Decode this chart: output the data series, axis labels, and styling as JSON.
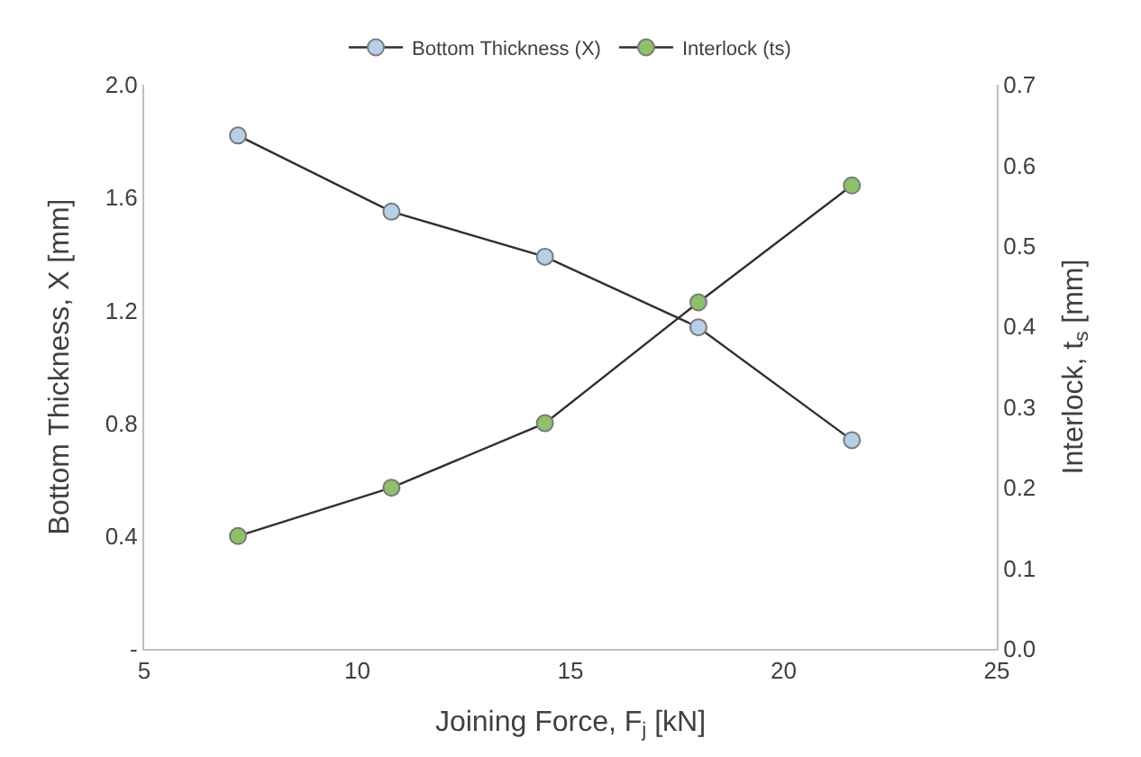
{
  "chart_data": {
    "type": "line",
    "xlabel": "Joining Force, F$_{j}$ [kN]",
    "ylabel": "Bottom Thickness, X [mm]",
    "y2label": "Interlock, t$_{s}$ [mm]",
    "x": [
      7.2,
      10.8,
      14.4,
      18.0,
      21.6
    ],
    "series": [
      {
        "name": "Bottom Thickness (X)",
        "color": "#b8cfe8",
        "values": [
          1.82,
          1.55,
          1.39,
          1.14,
          0.74
        ]
      },
      {
        "name": "Interlock (ts)",
        "color": "#8fc06a",
        "axis": "y2",
        "values": [
          0.14,
          0.2,
          0.28,
          0.43,
          0.575
        ]
      }
    ],
    "xlim": [
      5,
      25
    ],
    "xticks": [
      5,
      10,
      15,
      20,
      25
    ],
    "ylim": [
      0,
      2.0
    ],
    "yticks": [
      {
        "value": 0,
        "label": "-"
      },
      {
        "value": 0.4,
        "label": "0.4"
      },
      {
        "value": 0.8,
        "label": "0.8"
      },
      {
        "value": 1.2,
        "label": "1.2"
      },
      {
        "value": 1.6,
        "label": "1.6"
      },
      {
        "value": 2.0,
        "label": "2.0"
      }
    ],
    "y2lim": [
      0,
      0.7
    ],
    "y2ticks": [
      {
        "value": 0,
        "label": "0.0"
      },
      {
        "value": 0.1,
        "label": "0.1"
      },
      {
        "value": 0.2,
        "label": "0.2"
      },
      {
        "value": 0.3,
        "label": "0.3"
      },
      {
        "value": 0.4,
        "label": "0.4"
      },
      {
        "value": 0.5,
        "label": "0.5"
      },
      {
        "value": 0.6,
        "label": "0.6"
      },
      {
        "value": 0.7,
        "label": "0.7"
      }
    ],
    "marker": "circle",
    "line_style": "solid",
    "legend": "top"
  }
}
